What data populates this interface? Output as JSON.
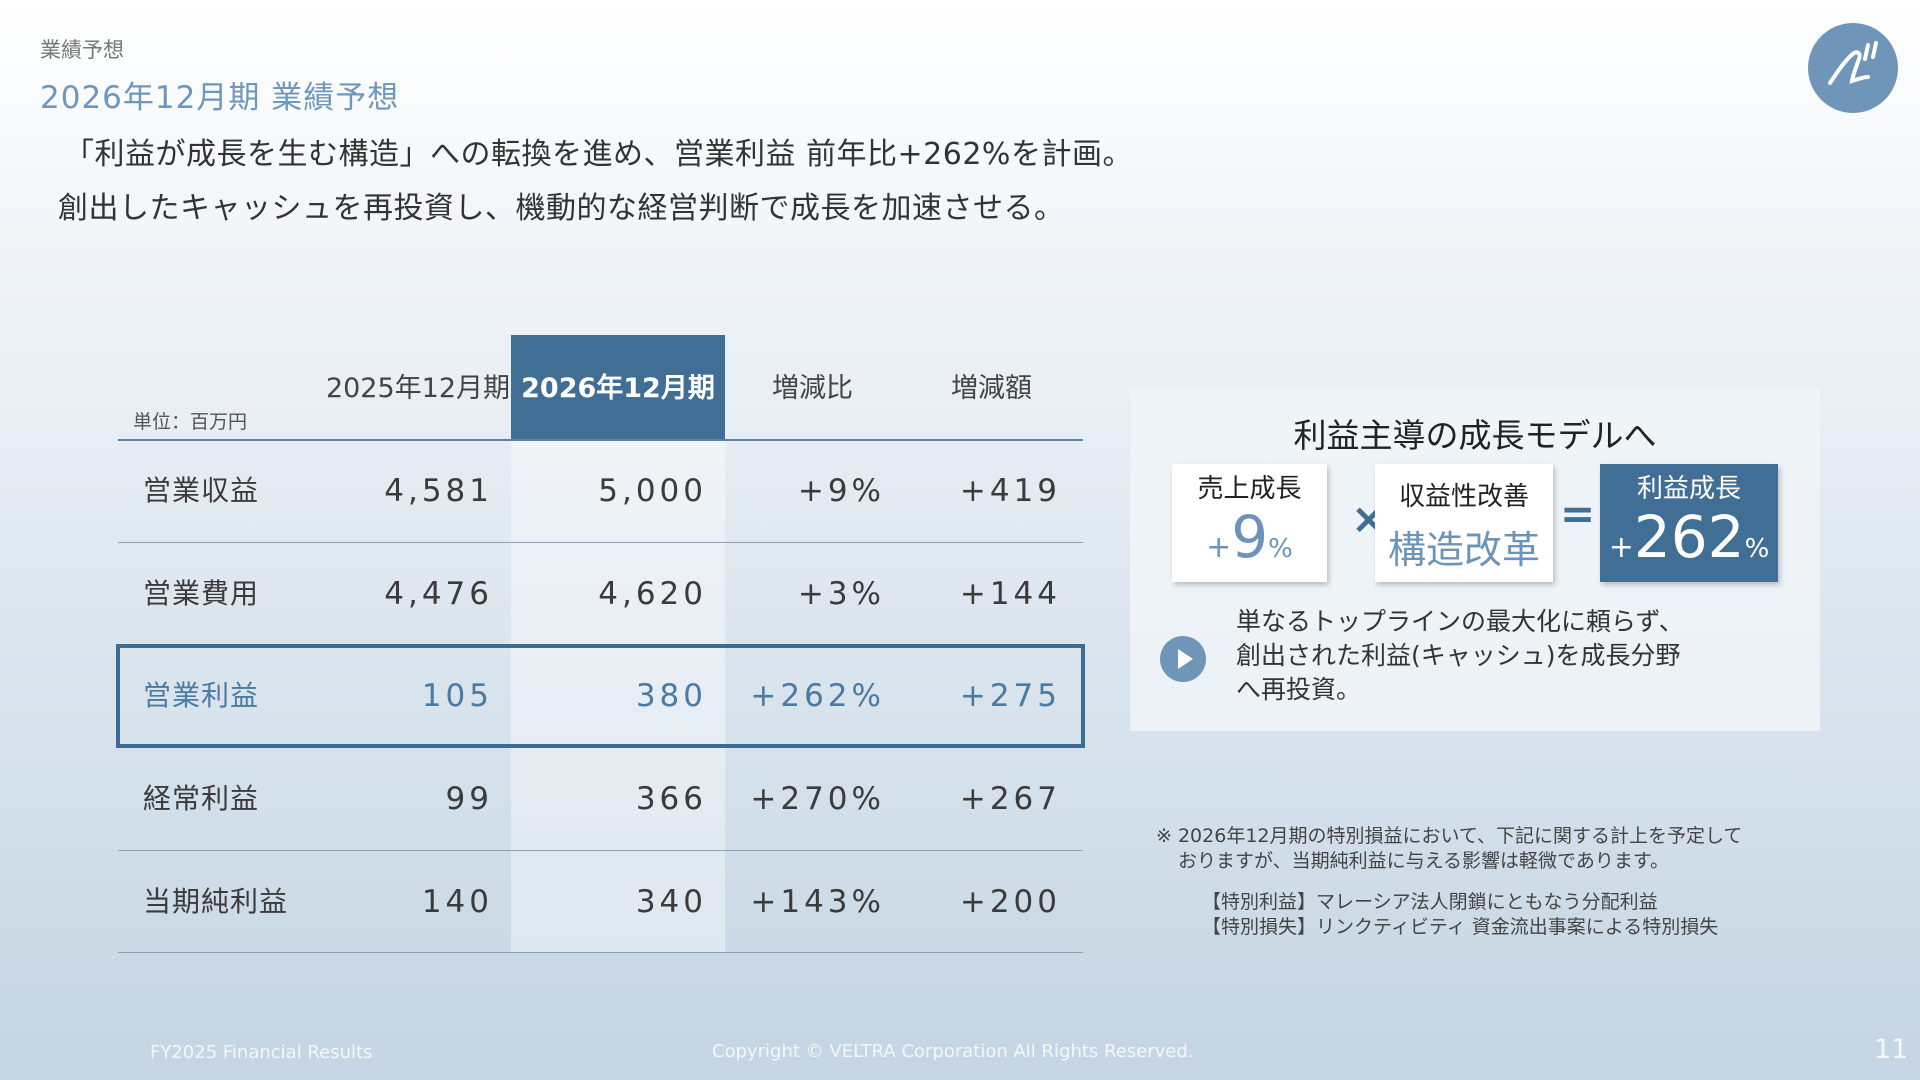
{
  "header": {
    "section": "業績予想",
    "title": "2026年12月期 業績予想"
  },
  "lead": {
    "line1": "「利益が成長を生む構造」への転換を進め、営業利益 前年比+262%を計画。",
    "line2": "創出したキャッシュを再投資し、機動的な経営判断で成長を加速させる。"
  },
  "table": {
    "unit": "単位：百万円",
    "headers": [
      "2025年12月期",
      "2026年12月期",
      "増減比",
      "増減額"
    ],
    "rows": [
      {
        "label": "営業収益",
        "fy2025": "4,581",
        "fy2026": "5,000",
        "ratio": "+9%",
        "diff": "+419"
      },
      {
        "label": "営業費用",
        "fy2025": "4,476",
        "fy2026": "4,620",
        "ratio": "+3%",
        "diff": "+144"
      },
      {
        "label": "営業利益",
        "fy2025": "105",
        "fy2026": "380",
        "ratio": "+262%",
        "diff": "+275"
      },
      {
        "label": "経常利益",
        "fy2025": "99",
        "fy2026": "366",
        "ratio": "+270%",
        "diff": "+267"
      },
      {
        "label": "当期純利益",
        "fy2025": "140",
        "fy2026": "340",
        "ratio": "+143%",
        "diff": "+200"
      }
    ]
  },
  "panel": {
    "title": "利益主導の成長モデルへ",
    "box1": {
      "title": "売上成長",
      "plus": "+",
      "num": "9",
      "pct": "%"
    },
    "times": "×",
    "box2": {
      "title": "収益性改善",
      "value": "構造改革"
    },
    "equals": "=",
    "box3": {
      "title": "利益成長",
      "plus": "+",
      "num": "262",
      "pct": "%"
    },
    "note": [
      "単なるトップラインの最大化に頼らず、",
      "創出された利益(キャッシュ)を成長分野",
      "へ再投資。"
    ]
  },
  "footnote": {
    "line1": "※ 2026年12月期の特別損益において、下記に関する計上を予定して",
    "line2": "おりますが、当期純利益に与える影響は軽微であります。",
    "line3": "【特別利益】マレーシア法人閉鎖にともなう分配利益",
    "line4": "【特別損失】リンクティビティ 資金流出事案による特別損失"
  },
  "footer": {
    "left": "FY2025 Financial Results",
    "center": "Copyright © VELTRA Corporation All Rights Reserved.",
    "page": "11"
  },
  "colors": {
    "accent_dark": "#416e95",
    "accent_light": "#6d97bd",
    "logo": "#6f96b8"
  }
}
